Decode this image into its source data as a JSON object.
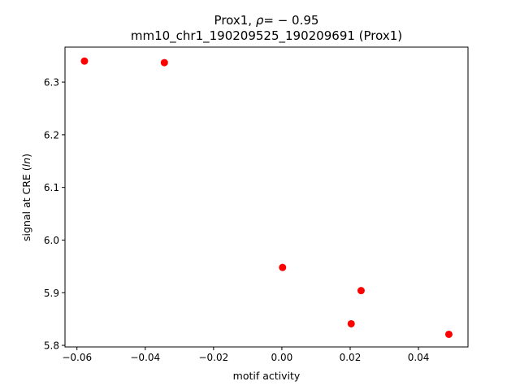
{
  "chart_data": {
    "type": "scatter",
    "title_parts": {
      "prefix": "Prox1, ",
      "rho_symbol": "ρ",
      "rho_value": "= − 0.95"
    },
    "subtitle": "mm10_chr1_190209525_190209691 (Prox1)",
    "xlabel": "motif activity",
    "ylabel_prefix": "signal at CRE (",
    "ylabel_italic": "ln",
    "ylabel_suffix": ")",
    "xlim": [
      -0.0635,
      0.0545
    ],
    "ylim": [
      5.797,
      6.3665
    ],
    "xticks": [
      -0.06,
      -0.04,
      -0.02,
      0.0,
      0.02,
      0.04
    ],
    "xtick_labels": [
      "−0.06",
      "−0.04",
      "−0.02",
      "0.00",
      "0.02",
      "0.04"
    ],
    "yticks": [
      5.8,
      5.9,
      6.0,
      6.1,
      6.2,
      6.3
    ],
    "ytick_labels": [
      "5.8",
      "5.9",
      "6.0",
      "6.1",
      "6.2",
      "6.3"
    ],
    "grid": false,
    "marker_color": "#ff0000",
    "points": [
      {
        "x": -0.0578,
        "y": 6.34
      },
      {
        "x": -0.0344,
        "y": 6.337
      },
      {
        "x": 0.0002,
        "y": 5.948
      },
      {
        "x": 0.0232,
        "y": 5.904
      },
      {
        "x": 0.0203,
        "y": 5.841
      },
      {
        "x": 0.0489,
        "y": 5.821
      }
    ]
  }
}
